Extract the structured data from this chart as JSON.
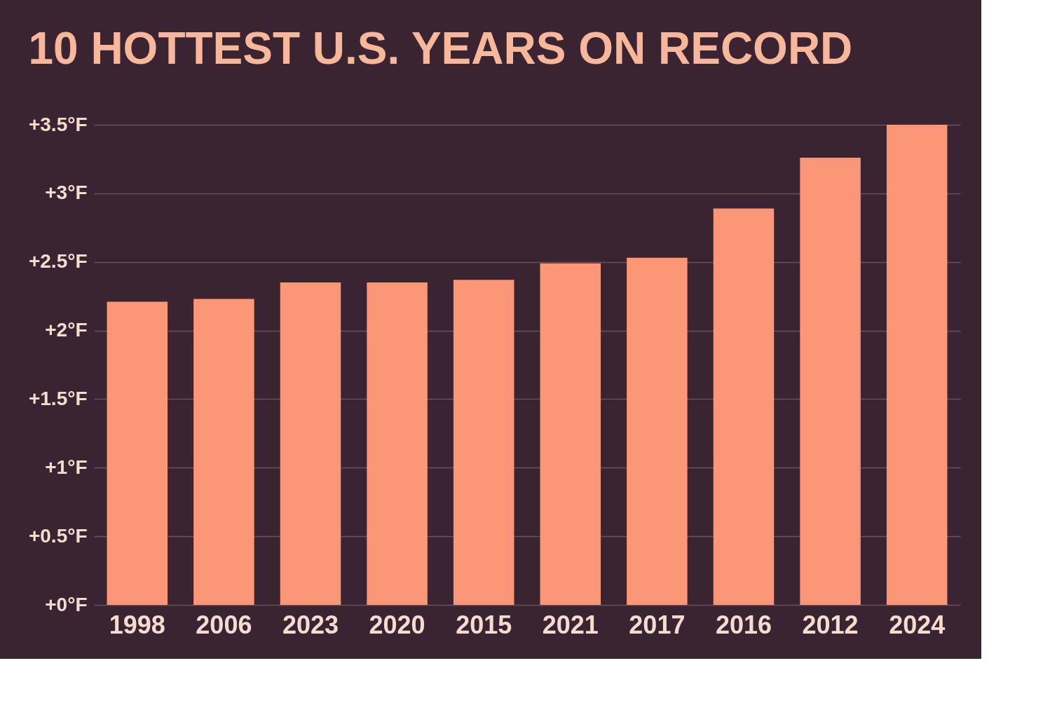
{
  "chart_data": {
    "type": "bar",
    "title": "10 HOTTEST U.S. YEARS ON RECORD",
    "categories": [
      "1998",
      "2006",
      "2023",
      "2020",
      "2015",
      "2021",
      "2017",
      "2016",
      "2012",
      "2024"
    ],
    "values": [
      2.21,
      2.23,
      2.35,
      2.35,
      2.37,
      2.49,
      2.53,
      2.89,
      3.26,
      3.5
    ],
    "color": "#fb9676",
    "ylim": [
      0,
      3.5
    ],
    "yticks": [
      {
        "value": 0,
        "label": "+0°F"
      },
      {
        "value": 0.5,
        "label": "+0.5°F"
      },
      {
        "value": 1,
        "label": "+1°F"
      },
      {
        "value": 1.5,
        "label": "+1.5°F"
      },
      {
        "value": 2,
        "label": "+2°F"
      },
      {
        "value": 2.5,
        "label": "+2.5°F"
      },
      {
        "value": 3,
        "label": "+3°F"
      },
      {
        "value": 3.5,
        "label": "+3.5°F"
      }
    ],
    "grid": "y"
  }
}
